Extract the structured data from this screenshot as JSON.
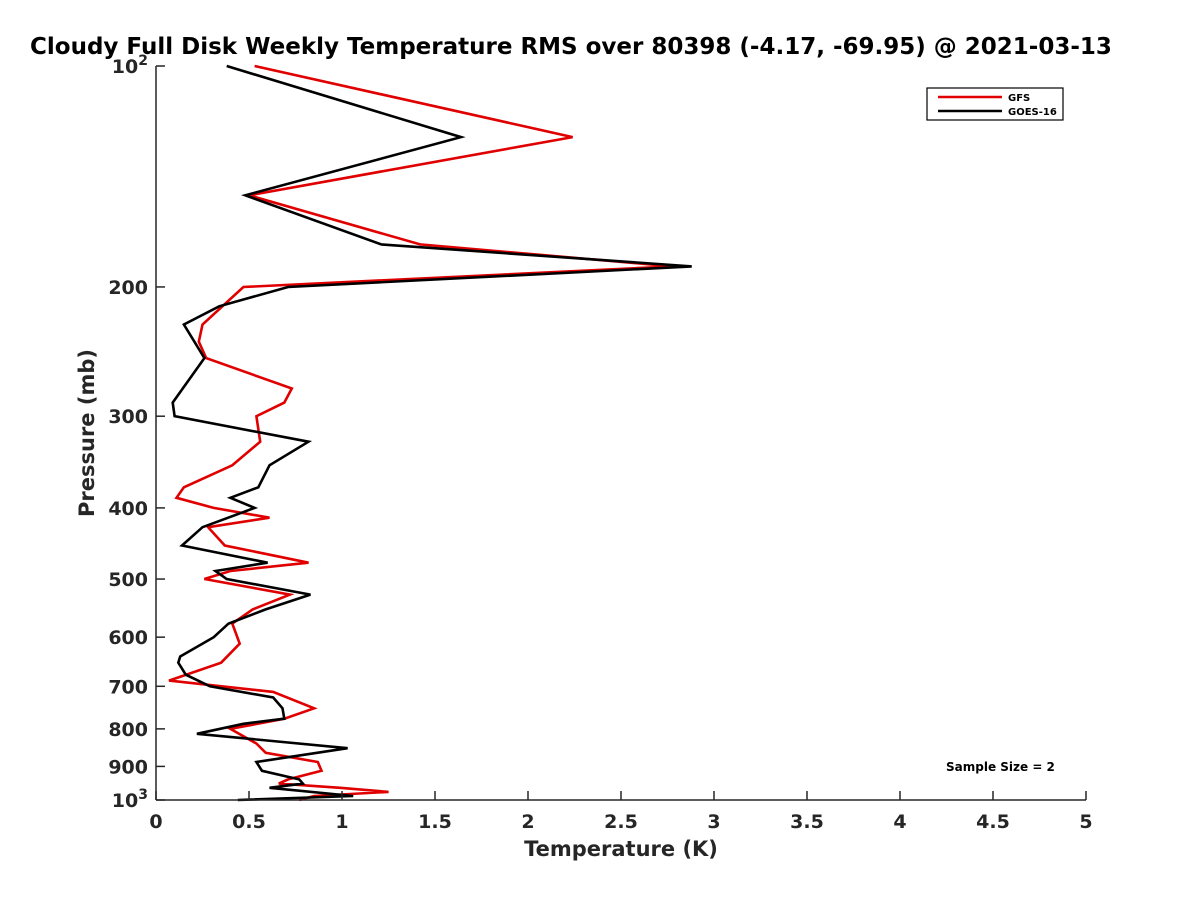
{
  "chart_data": {
    "type": "line",
    "title": "Cloudy Full Disk Weekly Temperature RMS over 80398 (-4.17, -69.95) @ 2021-03-13",
    "xlabel": "Temperature (K)",
    "ylabel": "Pressure (mb)",
    "xlim": [
      0,
      5
    ],
    "ylim": [
      100,
      1000
    ],
    "yscale": "log",
    "y_reversed": true,
    "x_ticks": [
      "0",
      "0.5",
      "1",
      "1.5",
      "2",
      "2.5",
      "3",
      "3.5",
      "4",
      "4.5",
      "5"
    ],
    "y_ticks": [
      {
        "value": 100,
        "base": "10",
        "exp": "2"
      },
      {
        "value": 200,
        "label": "200"
      },
      {
        "value": 300,
        "label": "300"
      },
      {
        "value": 400,
        "label": "400"
      },
      {
        "value": 500,
        "label": "500"
      },
      {
        "value": 600,
        "label": "600"
      },
      {
        "value": 700,
        "label": "700"
      },
      {
        "value": 800,
        "label": "800"
      },
      {
        "value": 900,
        "label": "900"
      },
      {
        "value": 1000,
        "base": "10",
        "exp": "3"
      }
    ],
    "legend_position": "top-right",
    "annotation": "Sample Size = 2",
    "series": [
      {
        "name": "GFS",
        "color": "#e00000",
        "points": [
          [
            0.53,
            100
          ],
          [
            2.24,
            125
          ],
          [
            0.5,
            150
          ],
          [
            1.42,
            175
          ],
          [
            2.78,
            187.5
          ],
          [
            0.47,
            200
          ],
          [
            0.25,
            225
          ],
          [
            0.23,
            237.5
          ],
          [
            0.27,
            250
          ],
          [
            0.73,
            275
          ],
          [
            0.69,
            287.5
          ],
          [
            0.54,
            300
          ],
          [
            0.56,
            325
          ],
          [
            0.41,
            350
          ],
          [
            0.15,
            375
          ],
          [
            0.11,
            387.5
          ],
          [
            0.31,
            400
          ],
          [
            0.61,
            412.5
          ],
          [
            0.28,
            425
          ],
          [
            0.37,
            450
          ],
          [
            0.82,
            475
          ],
          [
            0.4,
            487.5
          ],
          [
            0.26,
            500
          ],
          [
            0.72,
            525
          ],
          [
            0.52,
            550
          ],
          [
            0.41,
            575
          ],
          [
            0.45,
            612.5
          ],
          [
            0.35,
            650
          ],
          [
            0.07,
            687.5
          ],
          [
            0.63,
            712.5
          ],
          [
            0.85,
            750
          ],
          [
            0.69,
            775
          ],
          [
            0.4,
            800
          ],
          [
            0.54,
            837.5
          ],
          [
            0.59,
            862.5
          ],
          [
            0.87,
            887.5
          ],
          [
            0.89,
            912.5
          ],
          [
            0.71,
            937.5
          ],
          [
            0.66,
            950
          ],
          [
            0.99,
            962.5
          ],
          [
            1.25,
            975
          ],
          [
            0.85,
            987.5
          ],
          [
            0.77,
            1000
          ]
        ]
      },
      {
        "name": "GOES-16",
        "color": "#000000",
        "points": [
          [
            0.38,
            100
          ],
          [
            1.64,
            125
          ],
          [
            0.48,
            150
          ],
          [
            1.21,
            175
          ],
          [
            2.88,
            187.5
          ],
          [
            0.71,
            200
          ],
          [
            0.34,
            212.5
          ],
          [
            0.15,
            225
          ],
          [
            0.26,
            250
          ],
          [
            0.09,
            287.5
          ],
          [
            0.1,
            300
          ],
          [
            0.82,
            325
          ],
          [
            0.61,
            350
          ],
          [
            0.55,
            375
          ],
          [
            0.4,
            387.5
          ],
          [
            0.53,
            400
          ],
          [
            0.25,
            425
          ],
          [
            0.14,
            450
          ],
          [
            0.6,
            475
          ],
          [
            0.32,
            487.5
          ],
          [
            0.38,
            500
          ],
          [
            0.83,
            525
          ],
          [
            0.59,
            550
          ],
          [
            0.39,
            575
          ],
          [
            0.31,
            600
          ],
          [
            0.13,
            637.5
          ],
          [
            0.12,
            650
          ],
          [
            0.16,
            675
          ],
          [
            0.29,
            700
          ],
          [
            0.63,
            725
          ],
          [
            0.68,
            750
          ],
          [
            0.69,
            775
          ],
          [
            0.47,
            787.5
          ],
          [
            0.22,
            812.5
          ],
          [
            1.03,
            850
          ],
          [
            0.54,
            887.5
          ],
          [
            0.57,
            912.5
          ],
          [
            0.77,
            937.5
          ],
          [
            0.79,
            950
          ],
          [
            0.61,
            962.5
          ],
          [
            1.06,
            987.5
          ],
          [
            0.44,
            1000
          ]
        ]
      }
    ]
  }
}
